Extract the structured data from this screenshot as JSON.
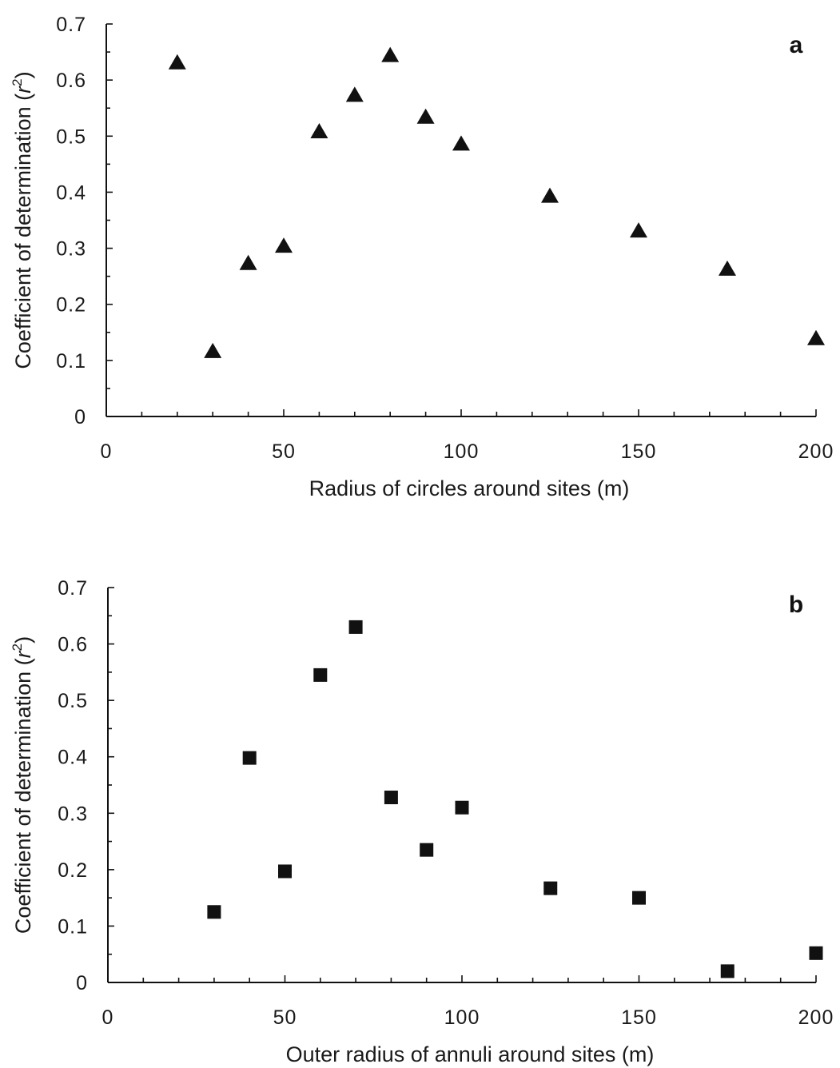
{
  "chart_data": [
    {
      "type": "scatter",
      "panel_label": "a",
      "xlabel": "Radius of circles around sites (m)",
      "ylabel_main": "Coefficient of determination (",
      "ylabel_var": "r",
      "ylabel_sup": "2",
      "ylabel_end": ")",
      "xlim": [
        0,
        200
      ],
      "ylim": [
        0,
        0.7
      ],
      "x_ticks": [
        "0",
        "50",
        "100",
        "150",
        "200"
      ],
      "y_ticks": [
        "0",
        "0.1",
        "0.2",
        "0.3",
        "0.4",
        "0.5",
        "0.6",
        "0.7"
      ],
      "marker": "triangle",
      "marker_color": "#111111",
      "x": [
        20,
        30,
        40,
        50,
        60,
        70,
        80,
        90,
        100,
        125,
        150,
        175,
        200
      ],
      "y": [
        0.63,
        0.115,
        0.272,
        0.303,
        0.507,
        0.572,
        0.643,
        0.533,
        0.485,
        0.392,
        0.33,
        0.262,
        0.138
      ]
    },
    {
      "type": "scatter",
      "panel_label": "b",
      "xlabel": "Outer radius of annuli around sites (m)",
      "ylabel_main": "Coefficient of determination (",
      "ylabel_var": "r",
      "ylabel_sup": "2",
      "ylabel_end": ")",
      "xlim": [
        0,
        200
      ],
      "ylim": [
        0,
        0.7
      ],
      "x_ticks": [
        "0",
        "50",
        "100",
        "150",
        "200"
      ],
      "y_ticks": [
        "0",
        "0.1",
        "0.2",
        "0.3",
        "0.4",
        "0.5",
        "0.6",
        "0.7"
      ],
      "marker": "square",
      "marker_color": "#111111",
      "x": [
        30,
        40,
        50,
        60,
        70,
        80,
        90,
        100,
        125,
        150,
        175,
        200
      ],
      "y": [
        0.125,
        0.398,
        0.197,
        0.545,
        0.63,
        0.328,
        0.235,
        0.31,
        0.167,
        0.15,
        0.02,
        0.052
      ]
    }
  ]
}
